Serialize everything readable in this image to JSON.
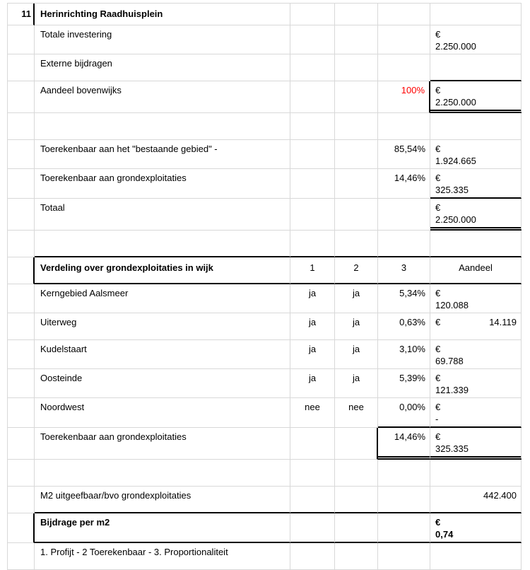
{
  "sheet": {
    "row_marker": "11",
    "title": "Herinrichting Raadhuisplein",
    "currency_symbol": "€",
    "colors": {
      "percent_red": "#ff0000",
      "gridline": "#d8d8d8",
      "border_black": "#000000"
    },
    "summary": {
      "totale_investering": {
        "label": "Totale investering",
        "amount": "2.250.000"
      },
      "externe_bijdragen": {
        "label": "Externe bijdragen"
      },
      "aandeel_bovenwijks": {
        "label": "Aandeel bovenwijks",
        "pct": "100%",
        "amount": "2.250.000"
      },
      "toerekenbaar_bestaand": {
        "label": "Toerekenbaar aan het \"bestaande gebied\" -",
        "pct": "85,54%",
        "amount": "1.924.665"
      },
      "toerekenbaar_grondexpl": {
        "label": "Toerekenbaar aan grondexploitaties",
        "pct": "14,46%",
        "amount": "325.335"
      },
      "totaal": {
        "label": "Totaal",
        "amount": "2.250.000"
      }
    },
    "verdeling": {
      "header": {
        "label": "Verdeling over grondexploitaties in wijk",
        "col1": "1",
        "col2": "2",
        "col3": "3",
        "aandeel": "Aandeel"
      },
      "wijken": [
        {
          "label": "Kerngebied Aalsmeer",
          "crit1": "ja",
          "crit2": "ja",
          "pct": "5,34%",
          "amount": "120.088"
        },
        {
          "label": "Uiterweg",
          "crit1": "ja",
          "crit2": "ja",
          "pct": "0,63%",
          "amount": "14.119"
        },
        {
          "label": "Kudelstaart",
          "crit1": "ja",
          "crit2": "ja",
          "pct": "3,10%",
          "amount": "69.788"
        },
        {
          "label": "Oosteinde",
          "crit1": "ja",
          "crit2": "ja",
          "pct": "5,39%",
          "amount": "121.339"
        },
        {
          "label": "Noordwest",
          "crit1": "nee",
          "crit2": "nee",
          "pct": "0,00%",
          "amount": "-"
        }
      ],
      "toerekenbaar_grondexpl": {
        "label": "Toerekenbaar aan grondexploitaties",
        "pct": "14,46%",
        "amount": "325.335"
      }
    },
    "m2_row": {
      "label": "M2 uitgeefbaar/bvo grondexploitaties",
      "value": "442.400"
    },
    "bijdrage_row": {
      "label": "Bijdrage per m2",
      "amount": "0,74"
    },
    "footnote": "1. Profijt - 2 Toerekenbaar - 3. Proportionaliteit"
  }
}
